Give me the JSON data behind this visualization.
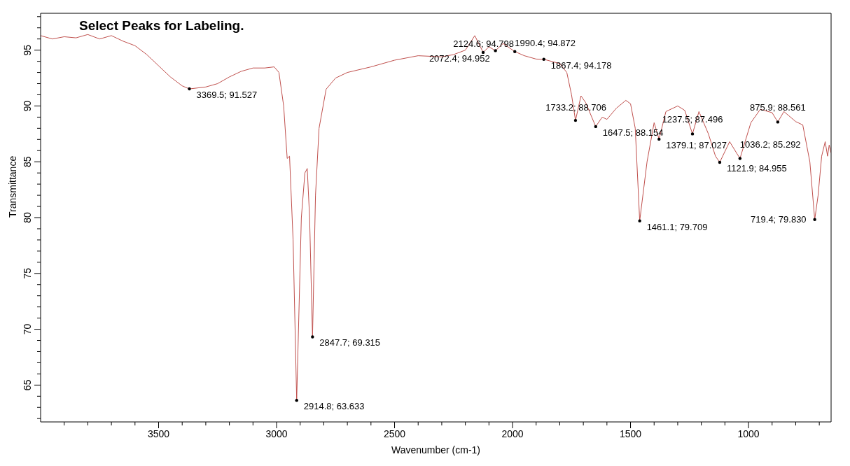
{
  "chart_data": {
    "type": "line",
    "title": "Select Peaks for Labeling.",
    "xlabel": "Wavenumber (cm-1)",
    "ylabel": "Transmittance",
    "xlim": [
      4000,
      650
    ],
    "ylim": [
      61.7,
      98.3
    ],
    "xticks": [
      {
        "value": 3900,
        "label": null
      },
      {
        "value": 3800,
        "label": null
      },
      {
        "value": 3700,
        "label": null
      },
      {
        "value": 3600,
        "label": null
      },
      3500,
      {
        "value": 3400,
        "label": null
      },
      {
        "value": 3300,
        "label": null
      },
      {
        "value": 3200,
        "label": null
      },
      {
        "value": 3100,
        "label": null
      },
      3000,
      {
        "value": 2900,
        "label": null
      },
      {
        "value": 2800,
        "label": null
      },
      {
        "value": 2700,
        "label": null
      },
      {
        "value": 2600,
        "label": null
      },
      2500,
      {
        "value": 2400,
        "label": null
      },
      {
        "value": 2300,
        "label": null
      },
      {
        "value": 2200,
        "label": null
      },
      {
        "value": 2100,
        "label": null
      },
      2000,
      {
        "value": 1900,
        "label": null
      },
      {
        "value": 1800,
        "label": null
      },
      {
        "value": 1700,
        "label": null
      },
      {
        "value": 1600,
        "label": null
      },
      1500,
      {
        "value": 1400,
        "label": null
      },
      {
        "value": 1300,
        "label": null
      },
      {
        "value": 1200,
        "label": null
      },
      {
        "value": 1100,
        "label": null
      },
      1000,
      {
        "value": 900,
        "label": null
      },
      {
        "value": 800,
        "label": null
      },
      {
        "value": 700,
        "label": null
      }
    ],
    "yticks": [
      {
        "value": 62,
        "label": null
      },
      {
        "value": 63,
        "label": null
      },
      {
        "value": 64,
        "label": null
      },
      65,
      {
        "value": 66,
        "label": null
      },
      {
        "value": 67,
        "label": null
      },
      {
        "value": 68,
        "label": null
      },
      {
        "value": 69,
        "label": null
      },
      70,
      {
        "value": 71,
        "label": null
      },
      {
        "value": 72,
        "label": null
      },
      {
        "value": 73,
        "label": null
      },
      {
        "value": 74,
        "label": null
      },
      75,
      {
        "value": 76,
        "label": null
      },
      {
        "value": 77,
        "label": null
      },
      {
        "value": 78,
        "label": null
      },
      {
        "value": 79,
        "label": null
      },
      80,
      {
        "value": 81,
        "label": null
      },
      {
        "value": 82,
        "label": null
      },
      {
        "value": 83,
        "label": null
      },
      {
        "value": 84,
        "label": null
      },
      85,
      {
        "value": 86,
        "label": null
      },
      {
        "value": 87,
        "label": null
      },
      {
        "value": 88,
        "label": null
      },
      {
        "value": 89,
        "label": null
      },
      90,
      {
        "value": 91,
        "label": null
      },
      {
        "value": 92,
        "label": null
      },
      {
        "value": 93,
        "label": null
      },
      {
        "value": 94,
        "label": null
      },
      95,
      {
        "value": 96,
        "label": null
      },
      {
        "value": 97,
        "label": null
      },
      {
        "value": 98,
        "label": null
      }
    ],
    "grid": false,
    "legend": false,
    "marker": "none",
    "line_style": "solid",
    "series": [
      {
        "color": "#c0504d",
        "x": [
          4000,
          3950,
          3900,
          3850,
          3800,
          3750,
          3700,
          3650,
          3600,
          3550,
          3500,
          3450,
          3400,
          3369.5,
          3300,
          3250,
          3200,
          3150,
          3100,
          3050,
          3010,
          2990,
          2970,
          2955,
          2945,
          2930,
          2914.8,
          2895,
          2880,
          2870,
          2860,
          2847.7,
          2835,
          2820,
          2790,
          2750,
          2700,
          2600,
          2500,
          2400,
          2300,
          2250,
          2200,
          2160,
          2124.6,
          2100,
          2072.4,
          2040,
          1990.4,
          1950,
          1900,
          1867.4,
          1800,
          1770,
          1750,
          1733.2,
          1710,
          1690,
          1647.5,
          1620,
          1600,
          1560,
          1520,
          1500,
          1480,
          1461.1,
          1430,
          1400,
          1379.1,
          1350,
          1300,
          1270,
          1237.5,
          1210,
          1170,
          1140,
          1121.9,
          1080,
          1036.2,
          990,
          950,
          900,
          875.9,
          850,
          800,
          770,
          740,
          719.4,
          705,
          690,
          675,
          665,
          658,
          650
        ],
        "values": [
          96.3,
          96.0,
          96.2,
          96.1,
          96.4,
          96.0,
          96.3,
          95.8,
          95.4,
          94.6,
          93.6,
          92.6,
          91.8,
          91.527,
          91.7,
          92.0,
          92.6,
          93.1,
          93.4,
          93.4,
          93.5,
          93.0,
          90.0,
          85.3,
          85.5,
          78.0,
          63.633,
          80.0,
          84.0,
          84.4,
          80.0,
          69.315,
          82.0,
          88.0,
          91.5,
          92.5,
          93.0,
          93.5,
          94.1,
          94.5,
          94.4,
          94.6,
          95.0,
          96.3,
          94.798,
          95.3,
          94.952,
          95.6,
          94.872,
          94.5,
          94.2,
          94.178,
          93.8,
          93.0,
          91.0,
          88.706,
          90.9,
          90.3,
          88.154,
          89.0,
          88.8,
          89.8,
          90.5,
          90.2,
          88.0,
          79.709,
          85.0,
          88.5,
          87.027,
          89.5,
          90.0,
          89.6,
          87.496,
          89.5,
          87.5,
          85.5,
          84.955,
          86.8,
          85.292,
          88.5,
          89.7,
          89.4,
          88.561,
          89.5,
          88.6,
          88.3,
          85.0,
          79.83,
          82.0,
          85.5,
          86.8,
          85.5,
          86.5,
          85.8
        ]
      }
    ],
    "annotations": [
      {
        "text": "3369.5; 91.527",
        "x": 3369.5,
        "y": 91.527
      },
      {
        "text": "2914.8; 63.633",
        "x": 2914.8,
        "y": 63.633
      },
      {
        "text": "2847.7; 69.315",
        "x": 2847.7,
        "y": 69.315
      },
      {
        "text": "2124.6; 94.798",
        "x": 2124.6,
        "y": 94.798
      },
      {
        "text": "2072.4; 94.952",
        "x": 2072.4,
        "y": 94.952
      },
      {
        "text": "1990.4; 94.872",
        "x": 1990.4,
        "y": 94.872
      },
      {
        "text": "1867.4; 94.178",
        "x": 1867.4,
        "y": 94.178
      },
      {
        "text": "1733.2; 88.706",
        "x": 1733.2,
        "y": 88.706
      },
      {
        "text": "1647.5; 88.154",
        "x": 1647.5,
        "y": 88.154
      },
      {
        "text": "1461.1; 79.709",
        "x": 1461.1,
        "y": 79.709
      },
      {
        "text": "1379.1; 87.027",
        "x": 1379.1,
        "y": 87.027
      },
      {
        "text": "1237.5; 87.496",
        "x": 1237.5,
        "y": 87.496
      },
      {
        "text": "1121.9; 84.955",
        "x": 1121.9,
        "y": 84.955
      },
      {
        "text": "1036.2; 85.292",
        "x": 1036.2,
        "y": 85.292
      },
      {
        "text": "875.9; 88.561",
        "x": 875.9,
        "y": 88.561
      },
      {
        "text": "719.4; 79.830",
        "x": 719.4,
        "y": 79.83
      }
    ]
  }
}
